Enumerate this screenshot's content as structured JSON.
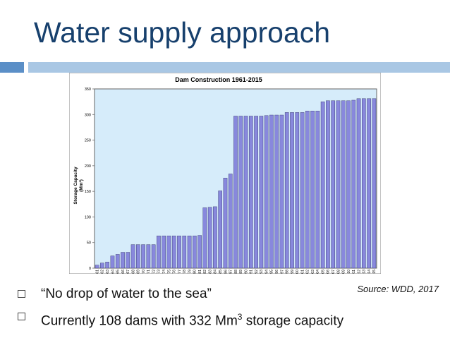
{
  "slide": {
    "title": "Water supply approach",
    "source": "Source: WDD, 2017",
    "bullets": [
      {
        "text": "“No drop of water to the sea”"
      },
      {
        "before": "Currently 108 dams with 332 Mm",
        "sup": "3",
        "after": " storage capacity"
      }
    ]
  },
  "colors": {
    "title": "#17406d",
    "accent_dark": "#5b8fc7",
    "accent_light": "#a9c7e4",
    "plot_bg": "#d6ecfa",
    "bar": "#8888dd"
  },
  "chart_data": {
    "type": "bar",
    "title": "Dam Construction 1961-2015",
    "ylabel_lines": [
      "Storage Capacity",
      "(Mm³)"
    ],
    "xlabel": "",
    "ylim": [
      0,
      350
    ],
    "yticks": [
      0,
      50,
      100,
      150,
      200,
      250,
      300,
      350
    ],
    "grid": false,
    "categories": [
      "1961",
      "1962",
      "1963",
      "1964",
      "1965",
      "1966",
      "1967",
      "1968",
      "1969",
      "1970",
      "1971",
      "1972",
      "1973",
      "1974",
      "1975",
      "1976",
      "1977",
      "1978",
      "1979",
      "1980",
      "1981",
      "1982",
      "1983",
      "1984",
      "1985",
      "1986",
      "1987",
      "1988",
      "1989",
      "1990",
      "1991",
      "1992",
      "1993",
      "1994",
      "1995",
      "1996",
      "1997",
      "1998",
      "1999",
      "2000",
      "2001",
      "2002",
      "2003",
      "2004",
      "2005",
      "2006",
      "2007",
      "2008",
      "2009",
      "2010",
      "2011",
      "2012",
      "2013",
      "2014",
      "2015"
    ],
    "values": [
      6,
      10,
      12,
      24,
      27,
      31,
      31,
      46,
      46,
      46,
      46,
      46,
      63,
      63,
      63,
      63,
      63,
      63,
      63,
      63,
      64,
      118,
      119,
      120,
      151,
      176,
      184,
      297,
      297,
      297,
      297,
      297,
      297,
      298,
      299,
      299,
      299,
      304,
      304,
      304,
      304,
      307,
      307,
      307,
      325,
      327,
      327,
      327,
      327,
      327,
      328,
      331,
      331,
      331,
      331
    ]
  }
}
